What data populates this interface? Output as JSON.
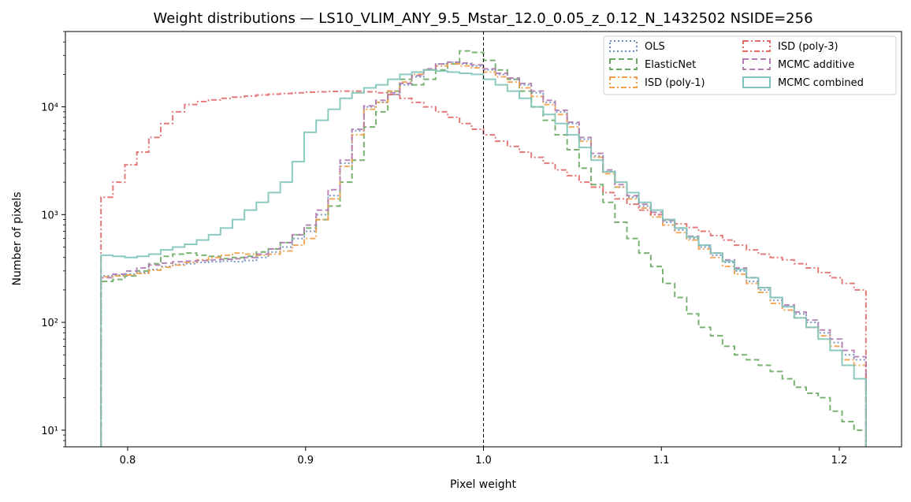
{
  "chart_data": {
    "type": "line",
    "title": "Weight distributions — LS10_VLIM_ANY_9.5_Mstar_12.0_0.05_z_0.12_N_1432502  NSIDE=256",
    "xlabel": "Pixel weight",
    "ylabel": "Number of pixels",
    "xlim": [
      0.765,
      1.235
    ],
    "ylim": [
      7,
      50000
    ],
    "yscale": "log",
    "x_ticks": [
      0.8,
      0.9,
      1.0,
      1.1,
      1.2
    ],
    "x_tick_labels": [
      "0.8",
      "0.9",
      "1.0",
      "1.1",
      "1.2"
    ],
    "y_ticks": [
      10,
      100,
      1000,
      10000
    ],
    "y_tick_labels": [
      "10¹",
      "10²",
      "10³",
      "10⁴"
    ],
    "vline": 1.0,
    "legend_position": "top-right",
    "grid": false,
    "bin_edges_range": [
      0.785,
      1.215
    ],
    "bin_count": 64,
    "series": [
      {
        "name": "OLS",
        "color": "#6c8ebf",
        "style": "dotted",
        "values": [
          270,
          275,
          280,
          290,
          310,
          330,
          345,
          350,
          360,
          365,
          370,
          365,
          375,
          400,
          450,
          500,
          600,
          700,
          1000,
          1500,
          3000,
          6000,
          10000,
          11000,
          13000,
          16000,
          19000,
          22000,
          25000,
          26000,
          25000,
          24000,
          22000,
          20000,
          18000,
          16000,
          13500,
          11000,
          9000,
          7000,
          5000,
          3500,
          2500,
          1800,
          1450,
          1200,
          1000,
          850,
          720,
          600,
          500,
          420,
          360,
          300,
          240,
          200,
          160,
          140,
          120,
          100,
          80,
          65,
          50,
          45
        ]
      },
      {
        "name": "ElasticNet",
        "color": "#6aaa64",
        "style": "dashed",
        "values": [
          240,
          250,
          270,
          300,
          350,
          410,
          430,
          440,
          420,
          410,
          390,
          400,
          410,
          450,
          480,
          550,
          650,
          750,
          900,
          1200,
          2000,
          3200,
          6500,
          9000,
          14000,
          18000,
          16000,
          18000,
          22000,
          25000,
          33000,
          32000,
          27000,
          22000,
          18000,
          14000,
          10000,
          7500,
          5500,
          4000,
          2700,
          1900,
          1300,
          850,
          600,
          440,
          330,
          230,
          170,
          120,
          90,
          75,
          60,
          50,
          45,
          40,
          35,
          30,
          25,
          22,
          20,
          15,
          12,
          10
        ]
      },
      {
        "name": "ISD (poly-1)",
        "color": "#f0a04b",
        "style": "dashdot",
        "values": [
          265,
          270,
          275,
          285,
          305,
          325,
          340,
          360,
          380,
          400,
          420,
          440,
          430,
          420,
          430,
          460,
          520,
          600,
          900,
          1400,
          2800,
          5500,
          9500,
          11000,
          14000,
          17000,
          20000,
          22000,
          24000,
          25000,
          24000,
          23000,
          21000,
          19000,
          17000,
          15000,
          12500,
          10500,
          8500,
          6500,
          4800,
          3400,
          2400,
          1800,
          1400,
          1150,
          950,
          800,
          680,
          580,
          480,
          400,
          330,
          280,
          230,
          190,
          150,
          130,
          110,
          90,
          75,
          60,
          45,
          40
        ]
      },
      {
        "name": "ISD (poly-3)",
        "color": "#e06c6c",
        "style": "dashdot",
        "values": [
          1450,
          2000,
          2900,
          3800,
          5200,
          7000,
          9000,
          10500,
          11200,
          11600,
          12000,
          12300,
          12600,
          12900,
          13100,
          13300,
          13500,
          13700,
          13800,
          13900,
          14000,
          14000,
          13800,
          13500,
          13000,
          12000,
          11000,
          10000,
          9000,
          8000,
          7000,
          6200,
          5500,
          4800,
          4300,
          3800,
          3400,
          3000,
          2600,
          2300,
          2000,
          1800,
          1600,
          1400,
          1250,
          1100,
          1000,
          900,
          820,
          760,
          700,
          640,
          580,
          520,
          470,
          430,
          400,
          380,
          350,
          320,
          290,
          260,
          230,
          200
        ]
      },
      {
        "name": "MCMC additive",
        "color": "#b07cb0",
        "style": "dashed",
        "values": [
          260,
          280,
          300,
          320,
          340,
          355,
          365,
          370,
          375,
          380,
          385,
          390,
          400,
          430,
          480,
          550,
          650,
          800,
          1100,
          1700,
          3200,
          6200,
          10200,
          11500,
          13500,
          16500,
          19500,
          22500,
          25000,
          26000,
          25500,
          24500,
          22500,
          20500,
          18500,
          16500,
          14000,
          11500,
          9300,
          7200,
          5200,
          3700,
          2600,
          1900,
          1500,
          1250,
          1050,
          880,
          750,
          630,
          520,
          440,
          380,
          320,
          260,
          210,
          170,
          145,
          125,
          105,
          85,
          70,
          55,
          48
        ]
      },
      {
        "name": "MCMC combined",
        "color": "#7fc4b8",
        "style": "solid",
        "values": [
          420,
          410,
          400,
          410,
          430,
          470,
          500,
          530,
          580,
          650,
          750,
          900,
          1100,
          1300,
          1600,
          2000,
          3100,
          5800,
          7500,
          9500,
          12000,
          13500,
          15000,
          16000,
          18000,
          20000,
          21000,
          22000,
          21500,
          21000,
          20500,
          20000,
          18000,
          16000,
          14000,
          12000,
          10000,
          8500,
          7000,
          5500,
          4200,
          3200,
          2500,
          2000,
          1600,
          1300,
          1100,
          900,
          750,
          620,
          520,
          440,
          370,
          310,
          260,
          210,
          170,
          140,
          110,
          90,
          70,
          55,
          40,
          30
        ]
      }
    ]
  }
}
